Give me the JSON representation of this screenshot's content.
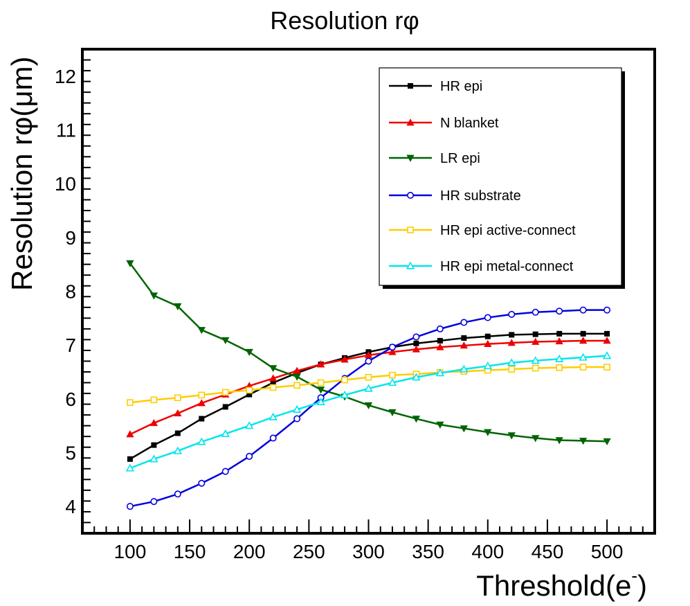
{
  "chart_data": {
    "type": "line",
    "title": "Resolution rφ",
    "xlabel": "Threshold(e",
    "xlabel_sup": "-",
    "xlabel_close": ")",
    "ylabel": "Resolution rφ(μm)",
    "xlim": [
      60,
      540
    ],
    "ylim": [
      3.5,
      12.5
    ],
    "xticks": [
      100,
      150,
      200,
      250,
      300,
      350,
      400,
      450,
      500
    ],
    "yticks": [
      4,
      5,
      6,
      7,
      8,
      9,
      10,
      11,
      12
    ],
    "x": [
      100,
      120,
      140,
      160,
      180,
      200,
      220,
      240,
      260,
      280,
      300,
      320,
      340,
      360,
      380,
      400,
      420,
      440,
      460,
      480,
      500
    ],
    "series": [
      {
        "name": "HR epi",
        "color": "#000000",
        "marker": "square-filled",
        "values": [
          4.88,
          5.14,
          5.36,
          5.63,
          5.85,
          6.08,
          6.3,
          6.48,
          6.64,
          6.76,
          6.87,
          6.96,
          7.03,
          7.08,
          7.13,
          7.16,
          7.19,
          7.2,
          7.21,
          7.21,
          7.21
        ]
      },
      {
        "name": "N blanket",
        "color": "#ee0000",
        "marker": "triangle-up-filled",
        "values": [
          5.34,
          5.55,
          5.73,
          5.92,
          6.08,
          6.24,
          6.38,
          6.52,
          6.64,
          6.73,
          6.81,
          6.87,
          6.92,
          6.96,
          6.99,
          7.02,
          7.04,
          7.06,
          7.07,
          7.08,
          7.08
        ]
      },
      {
        "name": "LR epi",
        "color": "#006400",
        "marker": "triangle-down-filled",
        "values": [
          8.52,
          7.92,
          7.72,
          7.28,
          7.09,
          6.87,
          6.57,
          6.41,
          6.17,
          6.04,
          5.88,
          5.75,
          5.63,
          5.52,
          5.45,
          5.38,
          5.32,
          5.27,
          5.23,
          5.22,
          5.21
        ]
      },
      {
        "name": "HR substrate",
        "color": "#0000dd",
        "marker": "circle-open",
        "values": [
          4.0,
          4.09,
          4.23,
          4.43,
          4.65,
          4.93,
          5.27,
          5.63,
          6.02,
          6.38,
          6.7,
          6.96,
          7.15,
          7.3,
          7.42,
          7.51,
          7.57,
          7.61,
          7.63,
          7.65,
          7.65
        ]
      },
      {
        "name": "HR epi active-connect",
        "color": "#ffcc00",
        "marker": "square-open",
        "values": [
          5.93,
          5.98,
          6.02,
          6.07,
          6.12,
          6.16,
          6.21,
          6.25,
          6.3,
          6.35,
          6.4,
          6.44,
          6.46,
          6.49,
          6.51,
          6.53,
          6.55,
          6.57,
          6.58,
          6.59,
          6.59
        ]
      },
      {
        "name": "HR epi metal-connect",
        "color": "#00e5ee",
        "marker": "triangle-up-open",
        "values": [
          4.71,
          4.88,
          5.03,
          5.2,
          5.35,
          5.5,
          5.66,
          5.8,
          5.94,
          6.07,
          6.19,
          6.3,
          6.4,
          6.48,
          6.55,
          6.61,
          6.67,
          6.71,
          6.74,
          6.77,
          6.8
        ]
      }
    ],
    "legend_position": "top-right",
    "grid": false
  }
}
